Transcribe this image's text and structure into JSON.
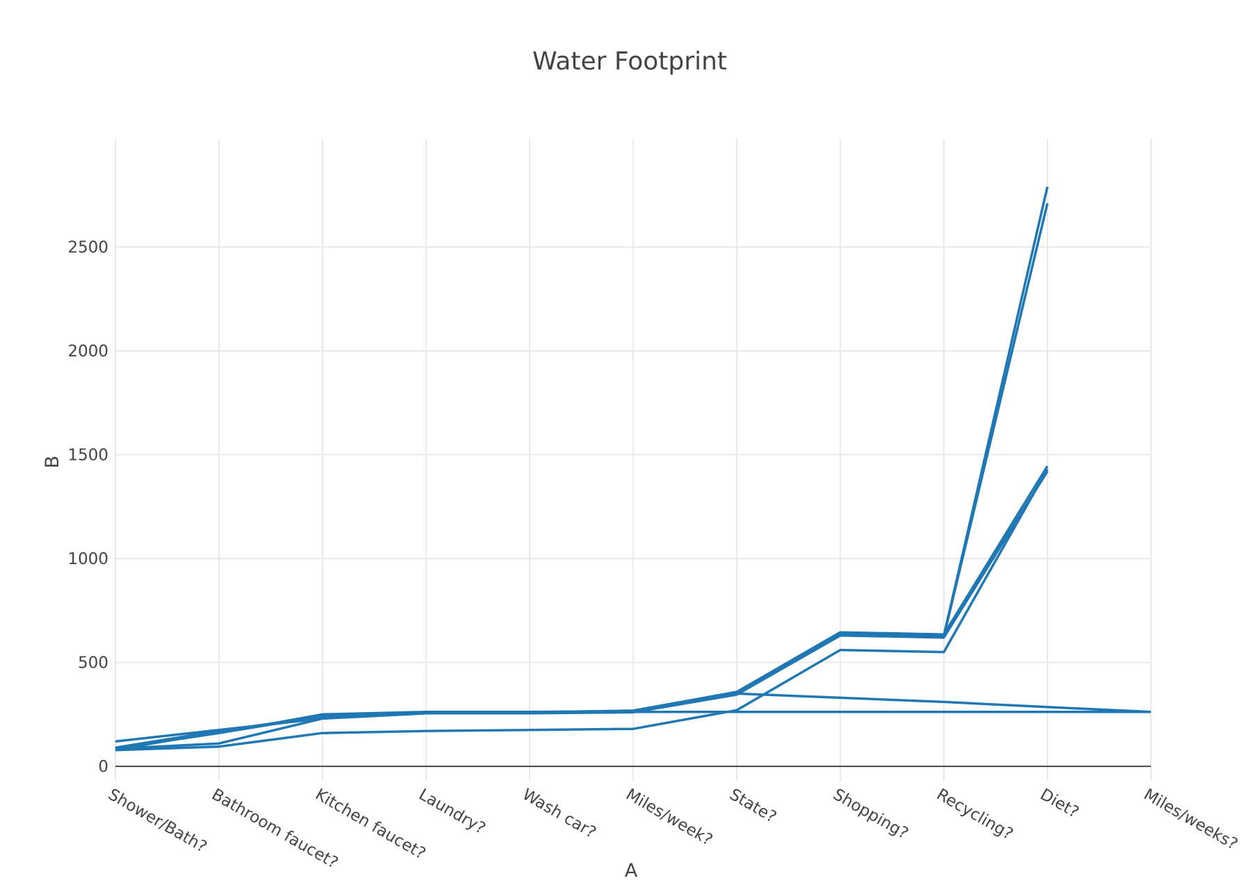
{
  "chart_data": {
    "type": "line",
    "title": "Water Footprint",
    "xlabel": "A",
    "ylabel": "B",
    "categories": [
      "Shower/Bath?",
      "Bathroom faucet?",
      "Kitchen faucet?",
      "Laundry?",
      "Wash car?",
      "Miles/week?",
      "State?",
      "Shopping?",
      "Recycling?",
      "Diet?",
      "Miles/weeks?"
    ],
    "ylim": [
      -70,
      3020
    ],
    "yticks": [
      0,
      500,
      1000,
      1500,
      2000,
      2500
    ],
    "grid": true,
    "legend": "none",
    "color": "#1f77b4",
    "series": [
      {
        "values": [
          85,
          160,
          250,
          262,
          262,
          265,
          355,
          640,
          630,
          2790,
          null
        ]
      },
      {
        "values": [
          80,
          165,
          245,
          258,
          258,
          262,
          350,
          635,
          625,
          2710,
          null
        ]
      },
      {
        "values": [
          90,
          170,
          240,
          260,
          260,
          268,
          358,
          645,
          635,
          1445,
          null
        ]
      },
      {
        "values": [
          88,
          160,
          242,
          255,
          255,
          260,
          345,
          630,
          620,
          1420,
          null
        ]
      },
      {
        "values": [
          78,
          95,
          160,
          170,
          175,
          180,
          270,
          560,
          550,
          1430,
          null
        ]
      },
      {
        "values": [
          120,
          175,
          230,
          255,
          258,
          260,
          350,
          330,
          310,
          285,
          262
        ]
      },
      {
        "values": [
          85,
          110,
          230,
          255,
          258,
          262,
          262,
          262,
          262,
          262,
          262
        ]
      }
    ]
  }
}
